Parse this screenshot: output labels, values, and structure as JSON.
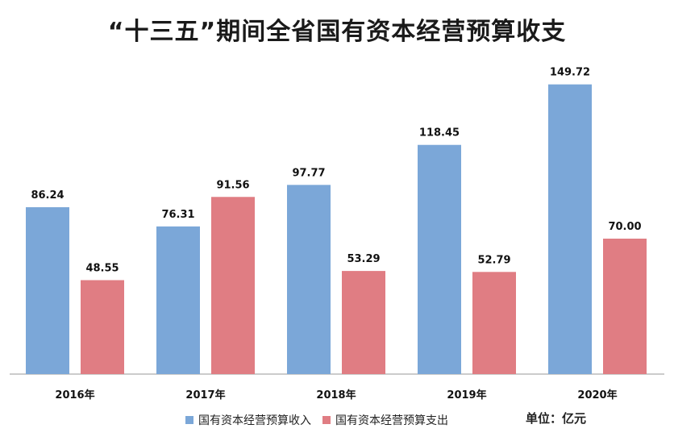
{
  "title": "“十三五”期间全省国有资本经营预算收支",
  "unit_label": "单位：亿元",
  "colors": {
    "income": "#7ba7d8",
    "expense": "#e07d83"
  },
  "chart_data": {
    "type": "bar",
    "title": "“十三五”期间全省国有资本经营预算收支",
    "categories": [
      "2016年",
      "2017年",
      "2018年",
      "2019年",
      "2020年"
    ],
    "series": [
      {
        "name": "国有资本经营预算收入",
        "values": [
          86.24,
          76.31,
          97.77,
          118.45,
          149.72
        ],
        "labels": [
          "86.24",
          "76.31",
          "97.77",
          "118.45",
          "149.72"
        ]
      },
      {
        "name": "国有资本经营预算支出",
        "values": [
          48.55,
          91.56,
          53.29,
          52.79,
          70.0
        ],
        "labels": [
          "48.55",
          "91.56",
          "53.29",
          "52.79",
          "70.00"
        ]
      }
    ],
    "ylim": [
      0,
      160
    ],
    "grid": false,
    "legend": "bottom"
  }
}
